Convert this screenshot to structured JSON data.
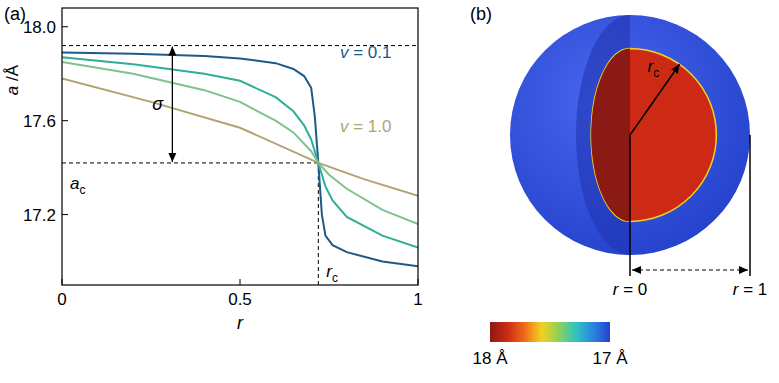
{
  "chart_data": {
    "type": "line",
    "panel_label": "(a)",
    "xlabel": "r",
    "ylabel": "a /Å",
    "xlim": [
      0,
      1
    ],
    "ylim": [
      16.9,
      18.08
    ],
    "xticks": [
      0,
      0.5,
      1
    ],
    "yticks": [
      17.2,
      17.6,
      {
        "value": 18,
        "label": "18.0"
      }
    ],
    "grid": false,
    "series": [
      {
        "name": "v = 0.1",
        "color": "#1d5a87",
        "x": [
          0,
          0.2,
          0.4,
          0.5,
          0.6,
          0.65,
          0.68,
          0.7,
          0.71,
          0.72,
          0.73,
          0.74,
          0.76,
          0.8,
          0.9,
          1
        ],
        "values": [
          17.89,
          17.885,
          17.875,
          17.865,
          17.845,
          17.82,
          17.79,
          17.74,
          17.62,
          17.42,
          17.2,
          17.11,
          17.07,
          17.04,
          17.0,
          16.98
        ]
      },
      {
        "color": "#2fae96",
        "x": [
          0,
          0.2,
          0.4,
          0.5,
          0.6,
          0.65,
          0.68,
          0.7,
          0.72,
          0.74,
          0.76,
          0.8,
          0.9,
          1
        ],
        "values": [
          17.87,
          17.84,
          17.8,
          17.77,
          17.7,
          17.64,
          17.58,
          17.52,
          17.42,
          17.32,
          17.26,
          17.19,
          17.11,
          17.06
        ]
      },
      {
        "color": "#7cc38c",
        "x": [
          0,
          0.2,
          0.4,
          0.5,
          0.6,
          0.65,
          0.7,
          0.72,
          0.75,
          0.8,
          0.9,
          1
        ],
        "values": [
          17.85,
          17.8,
          17.73,
          17.68,
          17.6,
          17.55,
          17.47,
          17.42,
          17.37,
          17.31,
          17.22,
          17.16
        ]
      },
      {
        "name": "v = 1.0",
        "color": "#b0a374",
        "x": [
          0,
          0.25,
          0.5,
          0.72,
          0.85,
          1
        ],
        "values": [
          17.78,
          17.68,
          17.57,
          17.42,
          17.35,
          17.28
        ]
      }
    ],
    "annotations": {
      "upper_level": 17.92,
      "a_c": {
        "value": 17.42,
        "label": "a",
        "subscript": "c"
      },
      "r_c": {
        "value": 0.72,
        "label": "r",
        "subscript": "c"
      },
      "sigma": "σ"
    }
  },
  "diagram": {
    "panel_label": "(b)",
    "r_c": {
      "label": "r",
      "subscript": "c"
    },
    "center_label": "r = 0",
    "edge_label": "r = 1",
    "colorbar": {
      "range": [
        18,
        17
      ],
      "ticks": [
        {
          "value": 18,
          "label": "18 Å"
        },
        {
          "value": 17,
          "label": "17 Å"
        }
      ],
      "colors": [
        "#8b1a14",
        "#cc2a14",
        "#ee6a1a",
        "#f2d21e",
        "#8fd05a",
        "#2ec4c0",
        "#2a86e0",
        "#2442cc"
      ]
    }
  }
}
